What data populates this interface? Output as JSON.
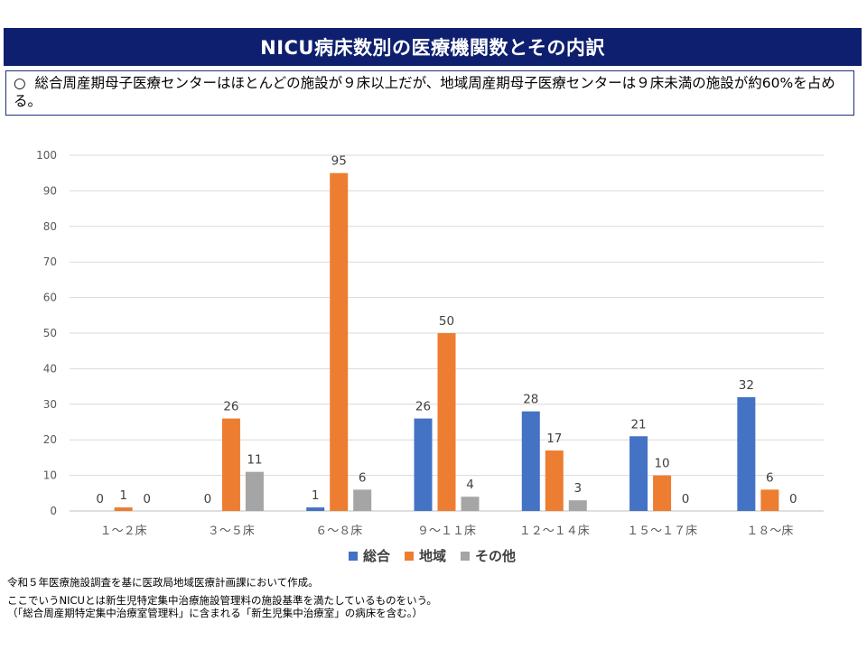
{
  "header": {
    "title": "NICU病床数別の医療機関数とその内訳"
  },
  "summary": {
    "bullet": "○",
    "text": "総合周産期母子医療センターはほとんどの施設が９床以上だが、地域周産期母子医療センターは９床未満の施設が約60%を占める。"
  },
  "chart_data": {
    "type": "bar",
    "title": "",
    "xlabel": "",
    "ylabel": "",
    "ylim": [
      0,
      100
    ],
    "yticks": [
      0,
      10,
      20,
      30,
      40,
      50,
      60,
      70,
      80,
      90,
      100
    ],
    "grid": true,
    "legend_position": "bottom",
    "categories": [
      "１～２床",
      "３～５床",
      "６～８床",
      "９～１１床",
      "１２～１４床",
      "１５～１７床",
      "１８～床"
    ],
    "series": [
      {
        "name": "総合",
        "color": "#4472c4",
        "values": [
          0,
          0,
          1,
          26,
          28,
          21,
          32
        ]
      },
      {
        "name": "地域",
        "color": "#ed7d31",
        "values": [
          1,
          26,
          95,
          50,
          17,
          10,
          6
        ]
      },
      {
        "name": "その他",
        "color": "#a5a5a5",
        "values": [
          0,
          11,
          6,
          4,
          3,
          0,
          0
        ]
      }
    ]
  },
  "notes": {
    "line1": "令和５年医療施設調査を基に医政局地域医療計画課において作成。",
    "line2": "ここでいうNICUとは新生児特定集中治療施設管理料の施設基準を満たしているものをいう。",
    "line3": "（「総合周産期特定集中治療室管理料」に含まれる「新生児集中治療室」の病床を含む。）"
  }
}
